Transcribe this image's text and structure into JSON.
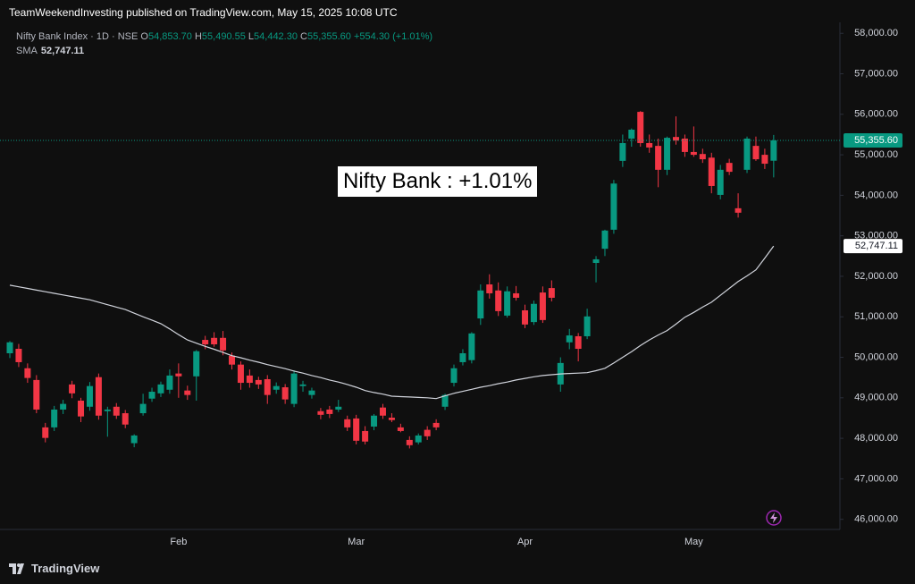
{
  "header": {
    "published": "TeamWeekendInvesting published on TradingView.com, May 15, 2025 10:08 UTC"
  },
  "footer": {
    "brand": "TradingView"
  },
  "chart_data": {
    "type": "candlestick",
    "annotation": "Nifty Bank : +1.01%",
    "legend": {
      "o_label": "O",
      "o": "54,853.70",
      "h_label": "H",
      "h": "55,490.55",
      "l_label": "L",
      "l": "54,442.30",
      "c_label": "C",
      "c": "55,355.60",
      "change": "+554.30 (+1.01%)",
      "sma_value": "52,747.11"
    },
    "last_price_label": "55,355.60",
    "sma_price_label": "52,747.11",
    "ylim": [
      45750,
      58270
    ],
    "yticks": [
      {
        "value": 46000,
        "label": "46,000.00"
      },
      {
        "value": 47000,
        "label": "47,000.00"
      },
      {
        "value": 48000,
        "label": "48,000.00"
      },
      {
        "value": 49000,
        "label": "49,000.00"
      },
      {
        "value": 50000,
        "label": "50,000.00"
      },
      {
        "value": 51000,
        "label": "51,000.00"
      },
      {
        "value": 52000,
        "label": "52,000.00"
      },
      {
        "value": 53000,
        "label": "53,000.00"
      },
      {
        "value": 54000,
        "label": "54,000.00"
      },
      {
        "value": 55000,
        "label": "55,000.00"
      },
      {
        "value": 56000,
        "label": "56,000.00"
      },
      {
        "value": 57000,
        "label": "57,000.00"
      },
      {
        "value": 58000,
        "label": "58,000.00"
      }
    ],
    "grid": false,
    "up_color": "#089981",
    "down_color": "#f23645",
    "categories": [
      null,
      null,
      null,
      null,
      null,
      null,
      null,
      null,
      null,
      null,
      null,
      null,
      null,
      null,
      null,
      null,
      null,
      null,
      null,
      "Feb",
      null,
      null,
      null,
      null,
      null,
      null,
      null,
      null,
      null,
      null,
      null,
      null,
      null,
      null,
      null,
      null,
      null,
      null,
      null,
      "Mar",
      null,
      null,
      null,
      null,
      null,
      null,
      null,
      null,
      null,
      null,
      null,
      null,
      null,
      null,
      null,
      null,
      null,
      null,
      "Apr",
      null,
      null,
      null,
      null,
      null,
      null,
      null,
      null,
      null,
      null,
      null,
      null,
      null,
      null,
      null,
      null,
      null,
      null,
      "May",
      null,
      null,
      null,
      null,
      null,
      null,
      null,
      null,
      null
    ],
    "series": [
      {
        "name": "Nifty Bank Index · 1D · NSE",
        "open": [
          50100,
          50210,
          49730,
          49440,
          48270,
          48270,
          48710,
          49330,
          48930,
          48780,
          49510,
          48670,
          48780,
          48620,
          47880,
          48620,
          48980,
          49110,
          49200,
          49600,
          49180,
          49530,
          50430,
          50480,
          50480,
          50040,
          49820,
          49550,
          49440,
          49460,
          49200,
          49260,
          48850,
          49290,
          49070,
          48670,
          48710,
          48710,
          48470,
          48490,
          48180,
          48290,
          48760,
          48510,
          48270,
          47960,
          47900,
          48210,
          48380,
          48780,
          49370,
          49880,
          49930,
          50960,
          51800,
          51650,
          51030,
          51580,
          51160,
          50870,
          51600,
          51710,
          49330,
          50370,
          50520,
          50520,
          52330,
          52680,
          53150,
          54850,
          55400,
          56060,
          55290,
          55220,
          54630,
          55440,
          55400,
          55070,
          55020,
          54930,
          54010,
          54800,
          53680,
          54630,
          55220,
          55000,
          54853.7
        ],
        "high": [
          50400,
          50330,
          49850,
          49560,
          48380,
          48800,
          48950,
          49420,
          49000,
          49390,
          49600,
          48780,
          48870,
          48700,
          48100,
          49100,
          49250,
          49400,
          49700,
          49850,
          49300,
          50180,
          50530,
          50620,
          50650,
          50120,
          49900,
          49700,
          49520,
          49560,
          49380,
          49340,
          49680,
          49420,
          49250,
          48750,
          48800,
          48950,
          48560,
          48580,
          48300,
          48600,
          48850,
          48620,
          48360,
          48050,
          48120,
          48300,
          48470,
          49100,
          49820,
          50200,
          50620,
          51800,
          52050,
          51850,
          51750,
          51760,
          51300,
          51400,
          51750,
          51900,
          50000,
          50700,
          50600,
          51200,
          52500,
          53150,
          54380,
          55500,
          55650,
          56080,
          55500,
          55400,
          55450,
          55950,
          55500,
          55700,
          55150,
          55050,
          54750,
          54900,
          54050,
          55450,
          55450,
          55150,
          55490.55
        ],
        "low": [
          49980,
          49760,
          49370,
          48620,
          47900,
          48180,
          48600,
          48990,
          48400,
          48680,
          48460,
          48040,
          48480,
          48250,
          47780,
          48560,
          48900,
          49020,
          49100,
          49000,
          48950,
          48930,
          50200,
          50260,
          50050,
          49700,
          49200,
          49250,
          49220,
          48850,
          49100,
          48850,
          48770,
          49150,
          48980,
          48470,
          48500,
          48650,
          48180,
          47850,
          47850,
          48200,
          48480,
          48400,
          48150,
          47750,
          47850,
          47960,
          48200,
          48700,
          49280,
          49800,
          49850,
          50800,
          51450,
          51020,
          50980,
          51400,
          50720,
          50800,
          50850,
          51380,
          49150,
          50200,
          49900,
          50450,
          51850,
          52500,
          53050,
          54700,
          55200,
          55200,
          55050,
          54200,
          54500,
          55250,
          54950,
          54950,
          54800,
          54050,
          53900,
          54500,
          53450,
          54550,
          54850,
          54650,
          54442.3
        ],
        "close": [
          50370,
          49880,
          49490,
          48710,
          48010,
          48710,
          48850,
          49110,
          48540,
          49290,
          48560,
          48710,
          48560,
          48340,
          48070,
          48850,
          49150,
          49330,
          49550,
          49530,
          49070,
          50150,
          50320,
          50320,
          50170,
          49820,
          49370,
          49370,
          49330,
          49070,
          49290,
          48960,
          49600,
          49330,
          49180,
          48580,
          48600,
          48780,
          48270,
          47940,
          47920,
          48560,
          48560,
          48450,
          48180,
          47830,
          48070,
          48050,
          48270,
          49070,
          49730,
          50100,
          50590,
          51650,
          51580,
          51140,
          51630,
          51470,
          50810,
          51320,
          50920,
          51470,
          49860,
          50540,
          50210,
          51010,
          52420,
          53130,
          54290,
          55290,
          55620,
          55290,
          55180,
          54630,
          55420,
          55350,
          55070,
          55000,
          54890,
          54230,
          54630,
          54580,
          53570,
          55400,
          54890,
          54780,
          55355.6
        ]
      },
      {
        "name": "SMA",
        "color": "#d1d4dc",
        "values": [
          51780,
          51740,
          51700,
          51660,
          51620,
          51580,
          51540,
          51500,
          51460,
          51420,
          51360,
          51300,
          51240,
          51180,
          51090,
          51000,
          50920,
          50830,
          50700,
          50560,
          50430,
          50350,
          50270,
          50200,
          50120,
          50040,
          49990,
          49930,
          49880,
          49820,
          49770,
          49720,
          49660,
          49610,
          49550,
          49500,
          49440,
          49390,
          49330,
          49260,
          49180,
          49130,
          49090,
          49040,
          49030,
          49020,
          49010,
          49000,
          48980,
          49050,
          49110,
          49160,
          49210,
          49260,
          49300,
          49350,
          49390,
          49440,
          49480,
          49520,
          49550,
          49570,
          49590,
          49600,
          49610,
          49620,
          49670,
          49730,
          49860,
          50000,
          50140,
          50290,
          50430,
          50550,
          50660,
          50820,
          50990,
          51110,
          51240,
          51360,
          51530,
          51700,
          51870,
          52010,
          52160,
          52450,
          52747.11
        ]
      }
    ]
  }
}
